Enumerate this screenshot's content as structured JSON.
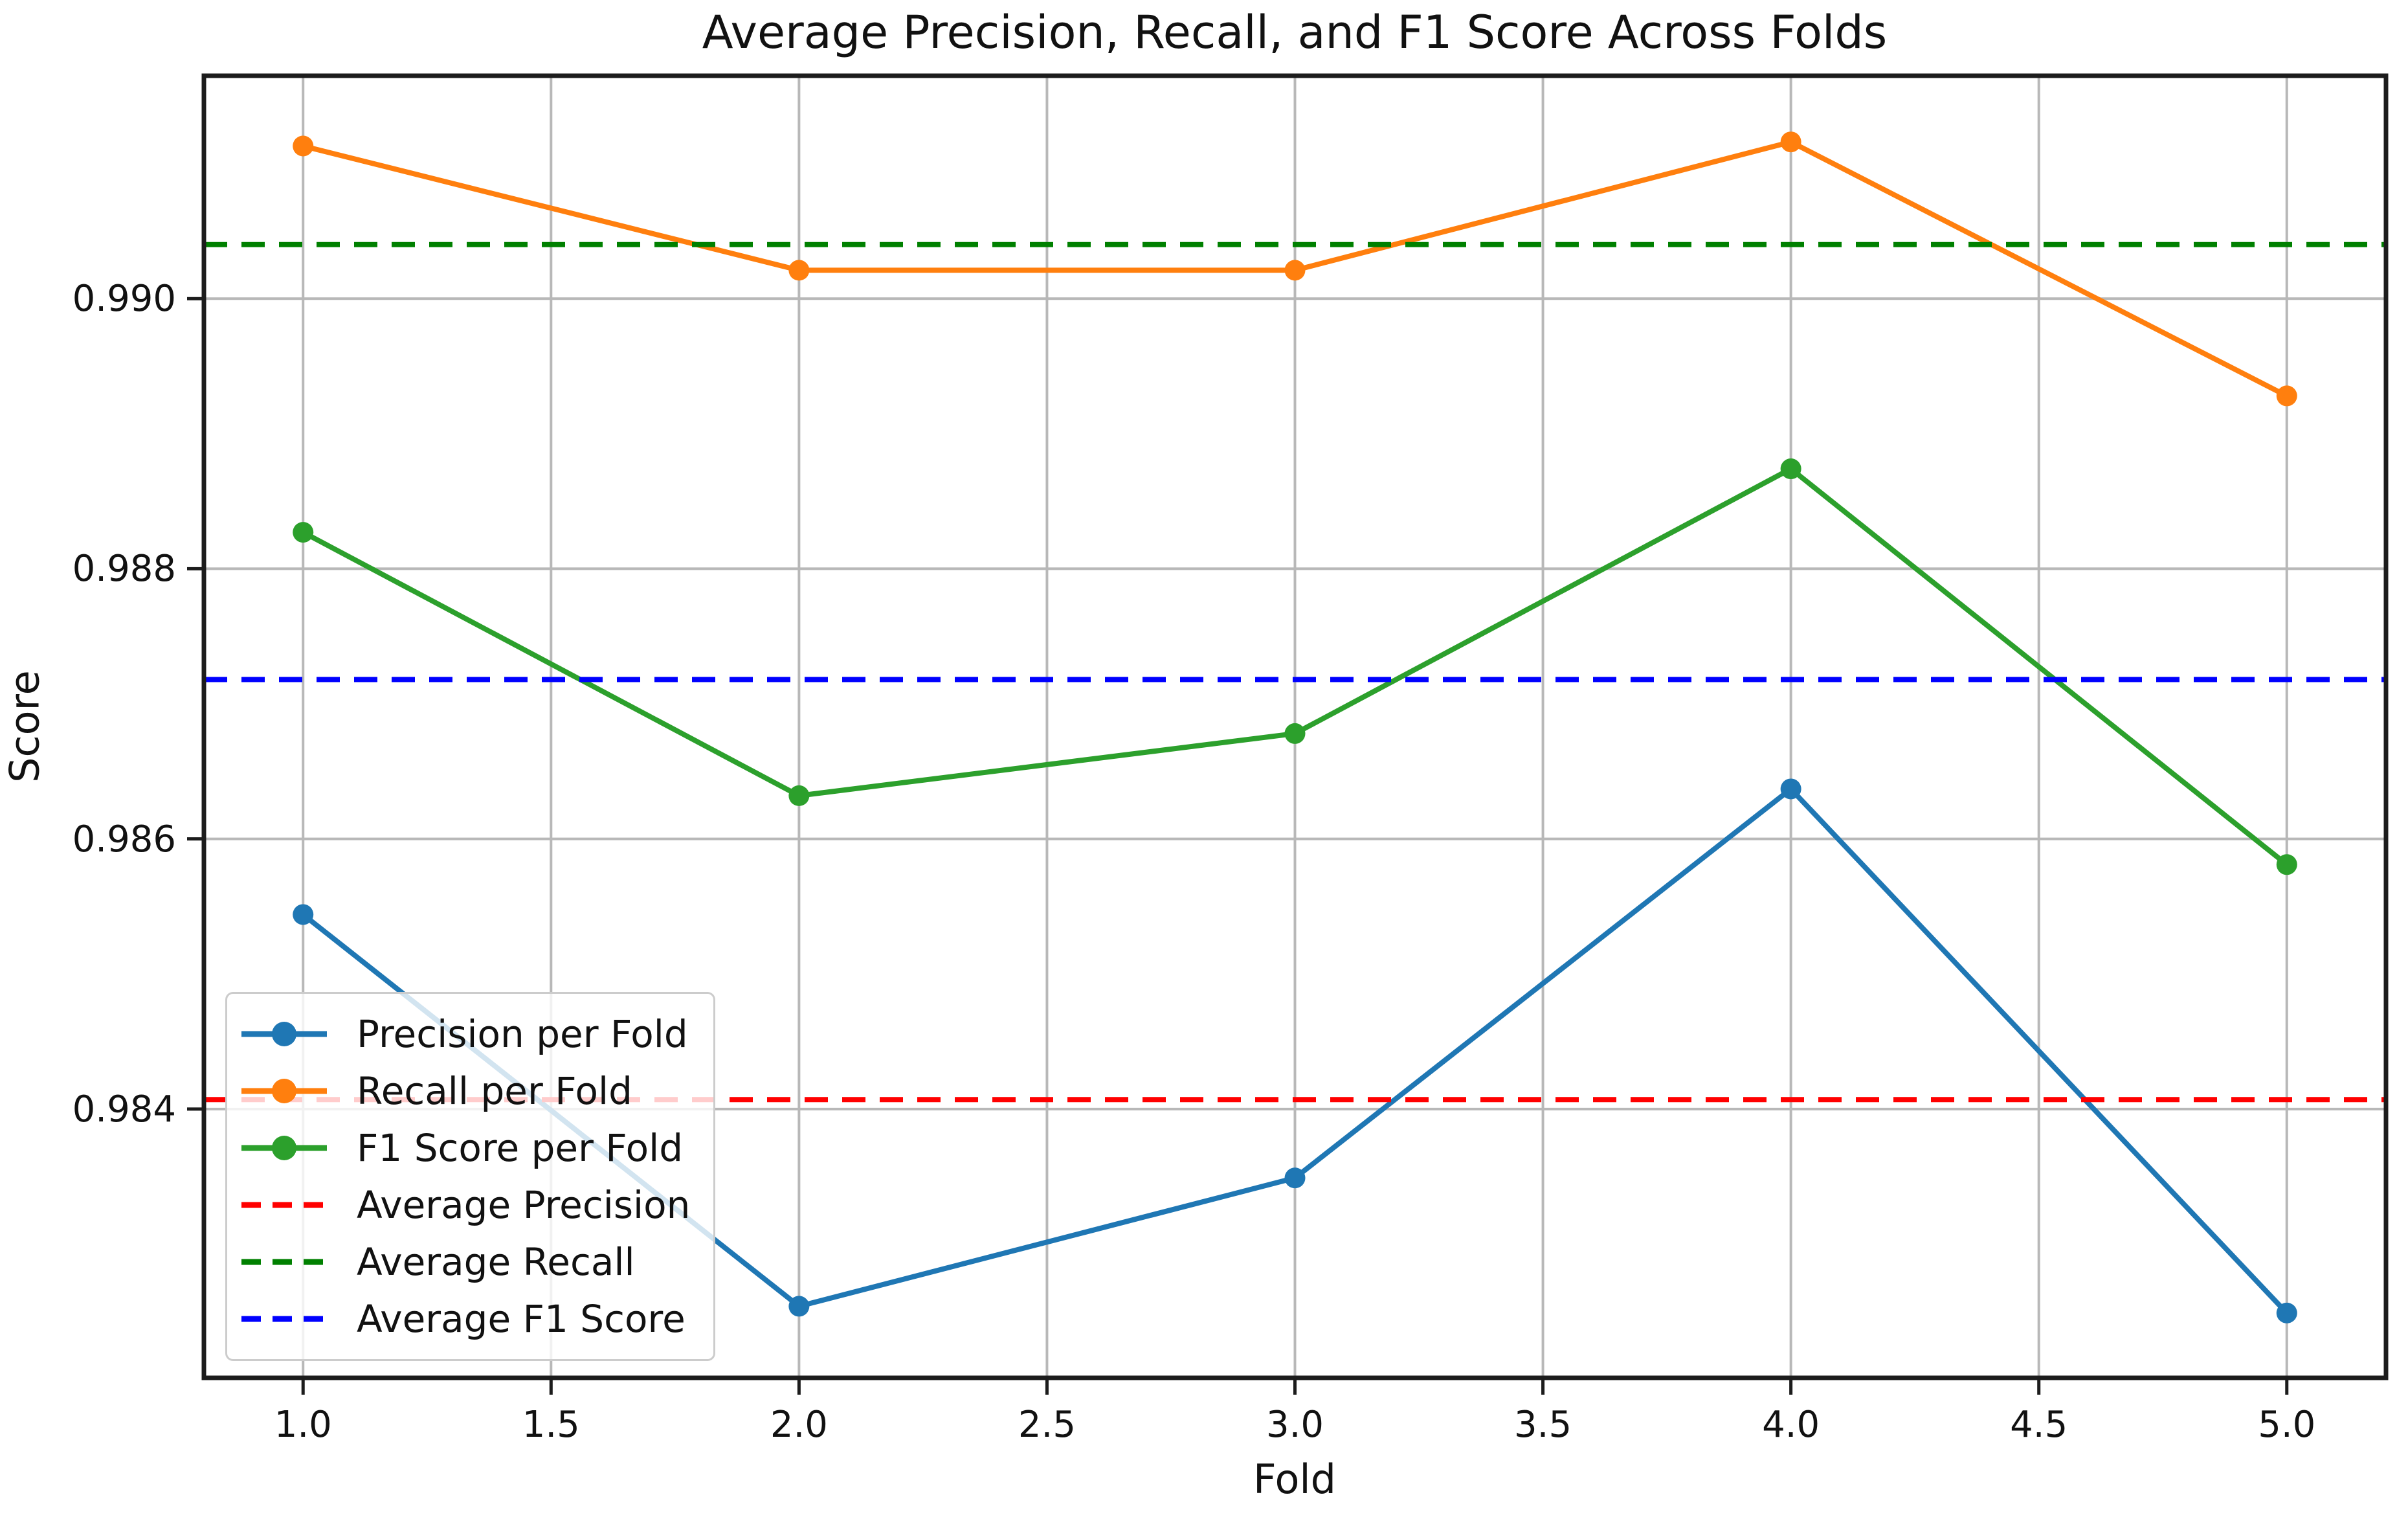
{
  "figure": {
    "title": "Average Precision, Recall, and F1 Score Across Folds",
    "xlabel": "Fold",
    "ylabel": "Score"
  },
  "chart_data": {
    "type": "line",
    "title": "Average Precision, Recall, and F1 Score Across Folds",
    "xlabel": "Fold",
    "ylabel": "Score",
    "x": [
      1,
      2,
      3,
      4,
      5
    ],
    "x_tick_labels": [
      "1.0",
      "1.5",
      "2.0",
      "2.5",
      "3.0",
      "3.5",
      "4.0",
      "4.5",
      "5.0"
    ],
    "y_tick_labels": [
      "0.984",
      "0.986",
      "0.988",
      "0.990"
    ],
    "xlim": [
      0.8,
      5.2
    ],
    "ylim": [
      0.98201,
      0.99165
    ],
    "grid": true,
    "grid_color": "#b8b8b8",
    "legend_position": "lower left",
    "series": [
      {
        "name": "Precision per Fold",
        "style": "solid",
        "marker": "circle",
        "color": "#1f77b4",
        "values": [
          0.98544,
          0.98254,
          0.98349,
          0.98637,
          0.98249
        ]
      },
      {
        "name": "Recall per Fold",
        "style": "solid",
        "marker": "circle",
        "color": "#ff7f0e",
        "values": [
          0.99113,
          0.99021,
          0.99021,
          0.99116,
          0.98928
        ]
      },
      {
        "name": "F1 Score per Fold",
        "style": "solid",
        "marker": "circle",
        "color": "#2ca02c",
        "values": [
          0.98827,
          0.98632,
          0.98678,
          0.98874,
          0.98581
        ]
      },
      {
        "name": "Average Precision",
        "style": "dashed",
        "color": "#ff0000",
        "value": 0.98407
      },
      {
        "name": "Average Recall",
        "style": "dashed",
        "color": "#008000",
        "value": 0.9904
      },
      {
        "name": "Average F1 Score",
        "style": "dashed",
        "color": "#0000ff",
        "value": 0.98718
      }
    ]
  }
}
